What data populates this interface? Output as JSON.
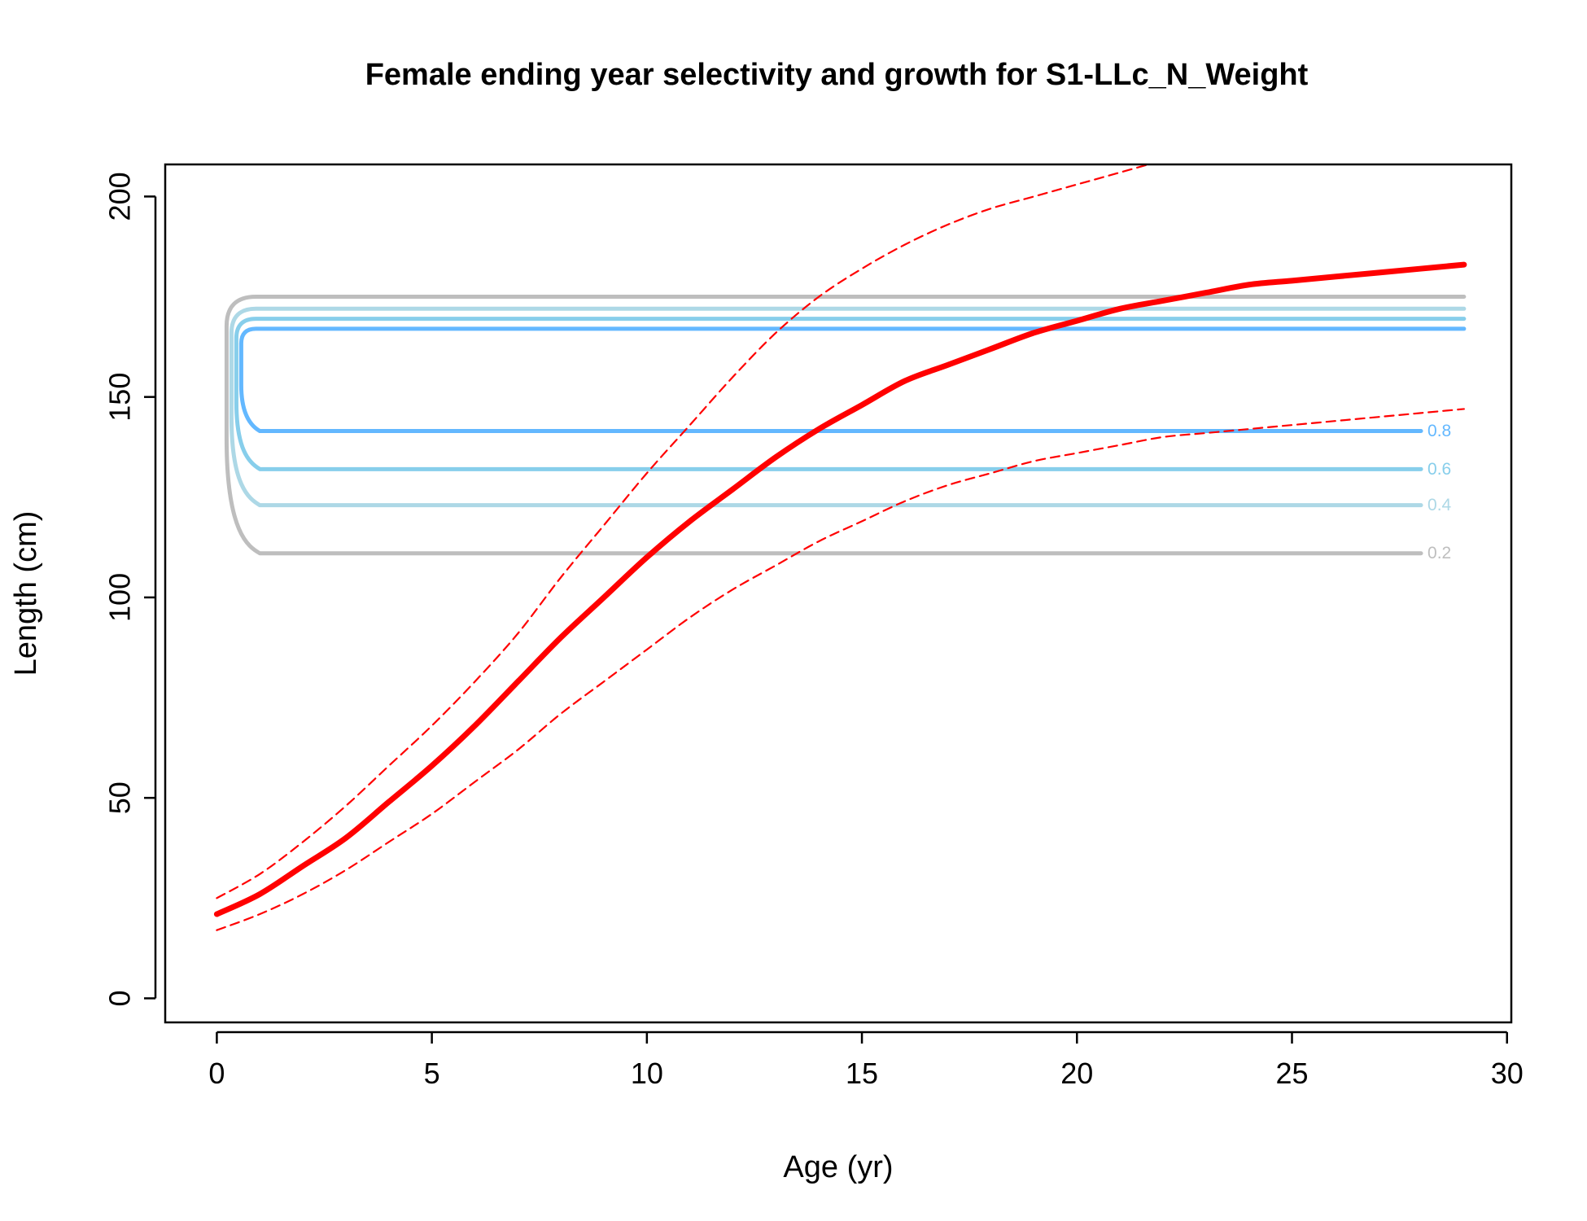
{
  "chart_data": {
    "type": "line",
    "title": "Female ending year selectivity and growth for S1-LLc_N_Weight",
    "xlabel": "Age (yr)",
    "ylabel": "Length (cm)",
    "xlim": [
      -1.2,
      30.1
    ],
    "ylim": [
      -6,
      208
    ],
    "xticks": [
      0,
      5,
      10,
      15,
      20,
      25,
      30
    ],
    "yticks": [
      0,
      50,
      100,
      150,
      200
    ],
    "grid": false,
    "legend": "none",
    "colors": {
      "growth": "#ff0000",
      "contour_0_2": "#bebebe",
      "contour_0_4": "#add8e6",
      "contour_0_6": "#87ceeb",
      "contour_0_8": "#63b8ff"
    },
    "series": [
      {
        "x": [
          0,
          1,
          2,
          3,
          4,
          5,
          6,
          7,
          8,
          9,
          10,
          11,
          12,
          13,
          14,
          15,
          16,
          17,
          18,
          19,
          20,
          21,
          22,
          23,
          24,
          25,
          26,
          27,
          28,
          29
        ],
        "values": [
          21,
          26,
          33,
          40,
          49,
          58,
          68,
          79,
          90,
          100,
          110,
          119,
          127,
          135,
          142,
          148,
          154,
          158,
          162,
          166,
          169,
          172,
          174,
          176,
          178,
          179,
          180,
          181,
          182,
          183
        ],
        "style": "solid"
      },
      {
        "x": [
          0,
          1,
          2,
          3,
          4,
          5,
          6,
          7,
          8,
          9,
          10,
          11,
          12,
          13,
          14,
          15,
          16,
          17,
          18,
          19,
          20,
          21,
          22,
          23
        ],
        "values": [
          25,
          31,
          39,
          48,
          58,
          68,
          79,
          91,
          105,
          118,
          131,
          143,
          155,
          166,
          175,
          182,
          188,
          193,
          197,
          200,
          203,
          206,
          209,
          212
        ],
        "style": "dashed"
      },
      {
        "x": [
          0,
          1,
          2,
          3,
          4,
          5,
          6,
          7,
          8,
          9,
          10,
          11,
          12,
          13,
          14,
          15,
          16,
          17,
          18,
          19,
          20,
          21,
          22,
          23,
          24,
          25,
          26,
          27,
          28,
          29
        ],
        "values": [
          17,
          21,
          26,
          32,
          39,
          46,
          54,
          62,
          71,
          79,
          87,
          95,
          102,
          108,
          114,
          119,
          124,
          128,
          131,
          134,
          136,
          138,
          140,
          141,
          142,
          143,
          144,
          145,
          146,
          147
        ],
        "style": "dashed"
      }
    ],
    "contours": [
      {
        "level": "0.2",
        "label": "0.2",
        "color": "#bebebe",
        "lower": 111,
        "upper": 175
      },
      {
        "level": "0.4",
        "label": "0.4",
        "color": "#add8e6",
        "lower": 123,
        "upper": 172
      },
      {
        "level": "0.6",
        "label": "0.6",
        "color": "#87ceeb",
        "lower": 132,
        "upper": 169.5
      },
      {
        "level": "0.8",
        "label": "0.8",
        "color": "#63b8ff",
        "lower": 141.5,
        "upper": 167
      }
    ],
    "contour_x_range": [
      0,
      29
    ],
    "contour_label_at_x": 28
  }
}
